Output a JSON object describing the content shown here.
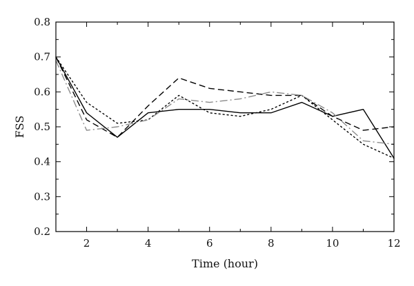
{
  "chart_data": {
    "type": "line",
    "title": "",
    "xlabel": "Time (hour)",
    "ylabel": "FSS",
    "xlim": [
      1,
      12
    ],
    "ylim": [
      0.2,
      0.8
    ],
    "xticks": [
      2,
      4,
      6,
      8,
      10,
      12
    ],
    "yticks": [
      0.2,
      0.3,
      0.4,
      0.5,
      0.6,
      0.7,
      0.8
    ],
    "ytick_labels": [
      "0.2",
      "0.3",
      "0.4",
      "0.5",
      "0.6",
      "0.7",
      "0.8"
    ],
    "xtick_labels": [
      "2",
      "4",
      "6",
      "8",
      "10",
      "12"
    ],
    "grid": false,
    "x": [
      1,
      2,
      3,
      4,
      5,
      6,
      7,
      8,
      9,
      10,
      11,
      12
    ],
    "series": [
      {
        "style": "solid",
        "color": "#000000",
        "values": [
          0.7,
          0.54,
          0.47,
          0.54,
          0.55,
          0.55,
          0.54,
          0.54,
          0.57,
          0.53,
          0.55,
          0.41
        ]
      },
      {
        "style": "dashed",
        "color": "#000000",
        "values": [
          0.7,
          0.52,
          0.47,
          0.56,
          0.64,
          0.61,
          0.6,
          0.59,
          0.59,
          0.53,
          0.49,
          0.5
        ]
      },
      {
        "style": "dotted",
        "color": "#000000",
        "values": [
          0.7,
          0.57,
          0.51,
          0.52,
          0.59,
          0.54,
          0.53,
          0.55,
          0.59,
          0.52,
          0.45,
          0.41
        ]
      },
      {
        "style": "dashdot",
        "color": "#8a8a8a",
        "values": [
          0.69,
          0.49,
          0.5,
          0.52,
          0.58,
          0.57,
          0.58,
          0.6,
          0.59,
          0.54,
          0.46,
          0.45
        ]
      }
    ]
  }
}
